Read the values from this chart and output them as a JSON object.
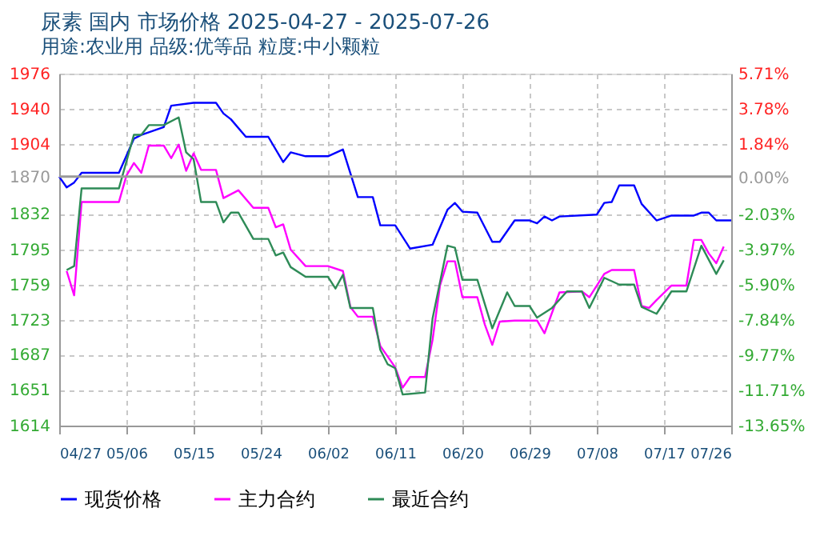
{
  "chart_data": {
    "type": "line",
    "title": "尿素 国内 市场价格 2025-04-27 - 2025-07-26",
    "subtitle": "用途:农业用 品级:优等品 粒度:中小颗粒",
    "xlim": [
      "2025-04-27",
      "2025-07-26"
    ],
    "xticks": [
      {
        "value": "2025-04-27",
        "label": "04/27"
      },
      {
        "value": "2025-05-06",
        "label": "05/06"
      },
      {
        "value": "2025-05-15",
        "label": "05/15"
      },
      {
        "value": "2025-05-24",
        "label": "05/24"
      },
      {
        "value": "2025-06-02",
        "label": "06/02"
      },
      {
        "value": "2025-06-11",
        "label": "06/11"
      },
      {
        "value": "2025-06-20",
        "label": "06/20"
      },
      {
        "value": "2025-06-29",
        "label": "06/29"
      },
      {
        "value": "2025-07-08",
        "label": "07/08"
      },
      {
        "value": "2025-07-17",
        "label": "07/17"
      },
      {
        "value": "2025-07-26",
        "label": "07/26"
      }
    ],
    "ylim": [
      1614,
      1976
    ],
    "yticks": [
      1614,
      1651,
      1687,
      1723,
      1759,
      1795,
      1832,
      1870,
      1904,
      1940,
      1976
    ],
    "y2lim": [
      -13.65,
      5.71
    ],
    "y2ticks": [
      {
        "value": -13.65,
        "label": "-13.65%"
      },
      {
        "value": -11.71,
        "label": "-11.71%"
      },
      {
        "value": -9.77,
        "label": "-9.77%"
      },
      {
        "value": -7.84,
        "label": "-7.84%"
      },
      {
        "value": -5.9,
        "label": "-5.90%"
      },
      {
        "value": -3.97,
        "label": "-3.97%"
      },
      {
        "value": -2.03,
        "label": "-2.03%"
      },
      {
        "value": 0,
        "label": "0.00%"
      },
      {
        "value": 1.84,
        "label": "1.84%"
      },
      {
        "value": 3.78,
        "label": "3.78%"
      },
      {
        "value": 5.71,
        "label": "5.71%"
      }
    ],
    "ref_lines": [
      {
        "axis": "y",
        "value": 1870,
        "color": "#999999"
      }
    ],
    "grid": true,
    "legend": "bottom",
    "marker": "none",
    "line_style": "solid",
    "series": [
      {
        "name": "现货价格",
        "color": "#0000ff",
        "x": [
          "2025-04-27",
          "2025-04-28",
          "2025-04-29",
          "2025-04-30",
          "2025-05-05",
          "2025-05-07",
          "2025-05-08",
          "2025-05-11",
          "2025-05-12",
          "2025-05-15",
          "2025-05-18",
          "2025-05-19",
          "2025-05-20",
          "2025-05-22",
          "2025-05-25",
          "2025-05-27",
          "2025-05-28",
          "2025-05-30",
          "2025-06-02",
          "2025-06-04",
          "2025-06-06",
          "2025-06-08",
          "2025-06-09",
          "2025-06-11",
          "2025-06-13",
          "2025-06-16",
          "2025-06-18",
          "2025-06-19",
          "2025-06-20",
          "2025-06-22",
          "2025-06-24",
          "2025-06-25",
          "2025-06-27",
          "2025-06-29",
          "2025-06-30",
          "2025-07-01",
          "2025-07-02",
          "2025-07-03",
          "2025-07-08",
          "2025-07-09",
          "2025-07-10",
          "2025-07-11",
          "2025-07-13",
          "2025-07-14",
          "2025-07-16",
          "2025-07-18",
          "2025-07-21",
          "2025-07-22",
          "2025-07-23",
          "2025-07-24",
          "2025-07-26"
        ],
        "values": [
          1870,
          1859,
          1864,
          1874,
          1874,
          1909,
          1913,
          1921,
          1943,
          1946,
          1946,
          1935,
          1929,
          1911,
          1911,
          1885,
          1895,
          1891,
          1891,
          1898,
          1849,
          1849,
          1820,
          1820,
          1796,
          1800,
          1836,
          1843,
          1834,
          1833,
          1803,
          1803,
          1825,
          1825,
          1822,
          1829,
          1825,
          1829,
          1831,
          1843,
          1844,
          1861,
          1861,
          1842,
          1825,
          1830,
          1830,
          1833,
          1833,
          1825,
          1825
        ]
      },
      {
        "name": "主力合约",
        "color": "#ff00ff",
        "x": [
          "2025-04-28",
          "2025-04-29",
          "2025-04-30",
          "2025-05-05",
          "2025-05-06",
          "2025-05-07",
          "2025-05-08",
          "2025-05-09",
          "2025-05-11",
          "2025-05-12",
          "2025-05-13",
          "2025-05-14",
          "2025-05-15",
          "2025-05-16",
          "2025-05-18",
          "2025-05-19",
          "2025-05-21",
          "2025-05-23",
          "2025-05-25",
          "2025-05-26",
          "2025-05-27",
          "2025-05-28",
          "2025-05-30",
          "2025-06-02",
          "2025-06-04",
          "2025-06-05",
          "2025-06-06",
          "2025-06-08",
          "2025-06-09",
          "2025-06-11",
          "2025-06-12",
          "2025-06-13",
          "2025-06-15",
          "2025-06-16",
          "2025-06-17",
          "2025-06-18",
          "2025-06-19",
          "2025-06-20",
          "2025-06-22",
          "2025-06-23",
          "2025-06-24",
          "2025-06-25",
          "2025-06-27",
          "2025-06-30",
          "2025-07-01",
          "2025-07-03",
          "2025-07-06",
          "2025-07-07",
          "2025-07-09",
          "2025-07-10",
          "2025-07-13",
          "2025-07-14",
          "2025-07-15",
          "2025-07-16",
          "2025-07-18",
          "2025-07-20",
          "2025-07-21",
          "2025-07-22",
          "2025-07-23",
          "2025-07-24",
          "2025-07-25"
        ],
        "values": [
          1773,
          1748,
          1844,
          1844,
          1871,
          1884,
          1874,
          1902,
          1902,
          1889,
          1903,
          1876,
          1894,
          1877,
          1877,
          1848,
          1856,
          1838,
          1838,
          1818,
          1821,
          1795,
          1778,
          1778,
          1773,
          1736,
          1726,
          1726,
          1696,
          1674,
          1653,
          1664,
          1664,
          1702,
          1758,
          1783,
          1783,
          1746,
          1746,
          1718,
          1697,
          1721,
          1722,
          1722,
          1709,
          1751,
          1752,
          1746,
          1770,
          1774,
          1774,
          1737,
          1735,
          1743,
          1758,
          1758,
          1805,
          1805,
          1791,
          1781,
          1798
        ]
      },
      {
        "name": "最近合约",
        "color": "#2e8b57",
        "x": [
          "2025-04-28",
          "2025-04-29",
          "2025-04-30",
          "2025-05-05",
          "2025-05-07",
          "2025-05-08",
          "2025-05-09",
          "2025-05-11",
          "2025-05-13",
          "2025-05-14",
          "2025-05-15",
          "2025-05-16",
          "2025-05-18",
          "2025-05-19",
          "2025-05-20",
          "2025-05-21",
          "2025-05-23",
          "2025-05-25",
          "2025-05-26",
          "2025-05-27",
          "2025-05-28",
          "2025-05-30",
          "2025-06-02",
          "2025-06-03",
          "2025-06-04",
          "2025-06-05",
          "2025-06-08",
          "2025-06-09",
          "2025-06-10",
          "2025-06-11",
          "2025-06-12",
          "2025-06-15",
          "2025-06-16",
          "2025-06-18",
          "2025-06-19",
          "2025-06-20",
          "2025-06-22",
          "2025-06-24",
          "2025-06-26",
          "2025-06-27",
          "2025-06-29",
          "2025-06-30",
          "2025-07-02",
          "2025-07-04",
          "2025-07-06",
          "2025-07-07",
          "2025-07-09",
          "2025-07-11",
          "2025-07-13",
          "2025-07-14",
          "2025-07-16",
          "2025-07-18",
          "2025-07-20",
          "2025-07-22",
          "2025-07-24",
          "2025-07-25"
        ],
        "values": [
          1774,
          1778,
          1858,
          1858,
          1913,
          1913,
          1923,
          1923,
          1931,
          1895,
          1888,
          1844,
          1844,
          1823,
          1833,
          1833,
          1806,
          1806,
          1789,
          1792,
          1777,
          1767,
          1767,
          1755,
          1769,
          1735,
          1735,
          1692,
          1677,
          1673,
          1646,
          1648,
          1724,
          1799,
          1797,
          1764,
          1764,
          1714,
          1751,
          1737,
          1737,
          1725,
          1735,
          1752,
          1752,
          1735,
          1766,
          1759,
          1759,
          1736,
          1729,
          1752,
          1752,
          1799,
          1770,
          1784
        ]
      }
    ]
  }
}
